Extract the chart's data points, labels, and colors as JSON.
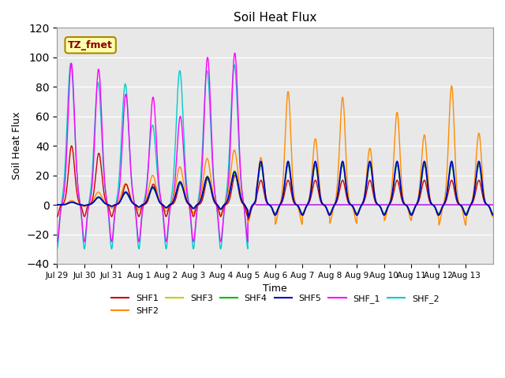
{
  "title": "Soil Heat Flux",
  "xlabel": "Time",
  "ylabel": "Soil Heat Flux",
  "ylim": [
    -40,
    120
  ],
  "annotation_text": "TZ_fmet",
  "annotation_color": "#8B0000",
  "annotation_bg": "#FFFFB0",
  "bg_color": "#E8E8E8",
  "series_colors": {
    "SHF1": "#CC0000",
    "SHF2": "#FF8C00",
    "SHF3": "#CCCC00",
    "SHF4": "#00BB00",
    "SHF5": "#0000CC",
    "SHF_1": "#FF00FF",
    "SHF_2": "#00CCCC"
  },
  "x_tick_labels": [
    "Jul 29",
    "Jul 30",
    "Jul 31",
    "Aug 1",
    "Aug 2",
    "Aug 3",
    "Aug 4",
    "Aug 5",
    "Aug 6",
    "Aug 7",
    "Aug 8",
    "Aug 9",
    "Aug 10",
    "Aug 11",
    "Aug 12",
    "Aug 13"
  ],
  "n_days": 16
}
